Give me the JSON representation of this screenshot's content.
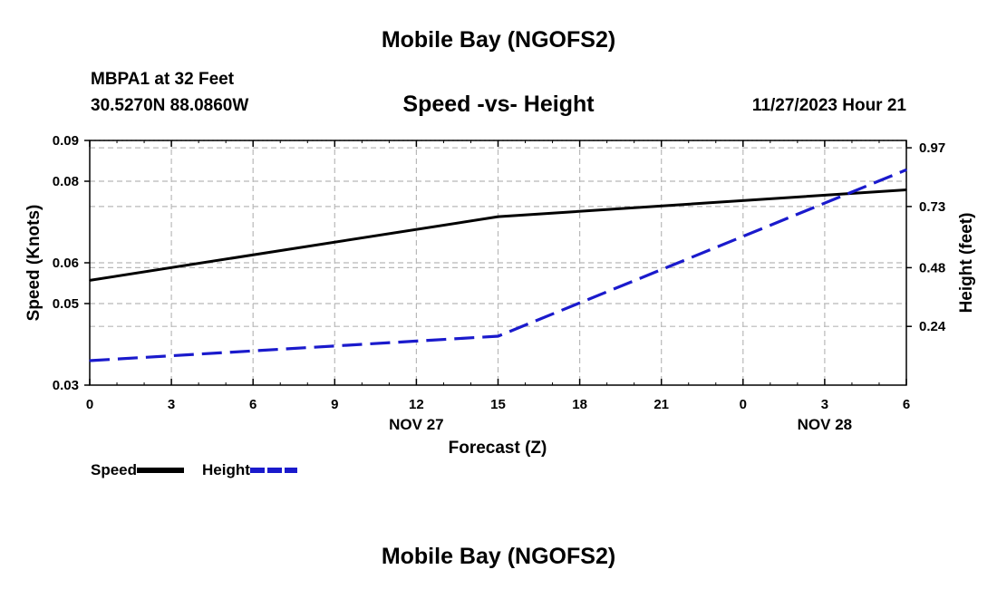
{
  "header": {
    "title": "Mobile Bay (NGOFS2)",
    "station": "MBPA1 at 32 Feet",
    "coords": "30.5270N  88.0860W",
    "datetime": "11/27/2023 Hour 21"
  },
  "footer": {
    "title": "Mobile Bay (NGOFS2)"
  },
  "chart_data": {
    "type": "line",
    "title": "Speed -vs- Height",
    "xlabel": "Forecast (Z)",
    "ylabel": "Speed (Knots)",
    "y2label": "Height (feet)",
    "x": [
      0,
      3,
      6,
      9,
      12,
      15,
      18,
      21,
      24,
      27,
      30
    ],
    "xticklabels": [
      "0",
      "3",
      "6",
      "9",
      "12",
      "15",
      "18",
      "21",
      "0",
      "3",
      "6"
    ],
    "date_labels": [
      {
        "x": 12,
        "label": "NOV 27"
      },
      {
        "x": 27,
        "label": "NOV 28"
      }
    ],
    "xlim": [
      0,
      30
    ],
    "ylim": [
      0.03,
      0.09
    ],
    "yticks": [
      0.03,
      0.05,
      0.06,
      0.08,
      0.09
    ],
    "yticklabels": [
      "0.03",
      "0.05",
      "0.06",
      "0.08",
      "0.09"
    ],
    "y2lim": [
      0.0,
      1.0
    ],
    "y2ticks": [
      0.24,
      0.48,
      0.73,
      0.97
    ],
    "y2ticklabels": [
      "0.24",
      "0.48",
      "0.73",
      "0.97"
    ],
    "grid": true,
    "legend_position": "bottom-left",
    "series": [
      {
        "name": "Speed",
        "axis": "left",
        "color": "#000000",
        "style": "solid",
        "x": [
          0,
          15,
          30
        ],
        "values": [
          0.0557,
          0.0713,
          0.0779
        ]
      },
      {
        "name": "Height",
        "axis": "right",
        "color": "#1a1acc",
        "style": "dashed",
        "x": [
          0,
          15,
          30
        ],
        "values": [
          0.1,
          0.2,
          0.88
        ]
      }
    ]
  }
}
